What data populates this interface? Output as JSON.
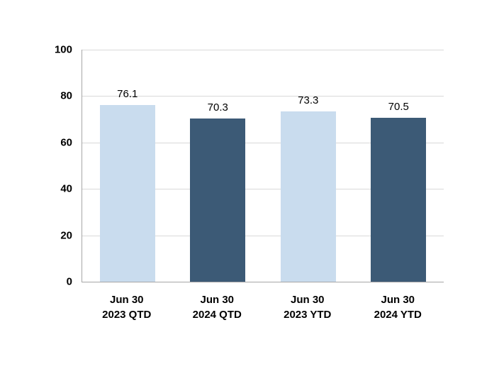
{
  "chart_data": {
    "type": "bar",
    "title": "",
    "xlabel": "",
    "ylabel": "",
    "categories": [
      "Jun 30\n2023 QTD",
      "Jun 30\n2024 QTD",
      "Jun 30\n2023 YTD",
      "Jun 30\n2024 YTD"
    ],
    "values": [
      76.1,
      70.3,
      73.3,
      70.5
    ],
    "data_labels": [
      "76.1",
      "70.3",
      "73.3",
      "70.5"
    ],
    "bar_colors": [
      "#c9dcee",
      "#3c5a76",
      "#c9dcee",
      "#3c5a76"
    ],
    "ylim": [
      0,
      100
    ],
    "yticks": [
      0,
      20,
      40,
      60,
      80,
      100
    ],
    "grid": true,
    "legend_position": "none",
    "colors": {
      "light_blue": "#c9dcee",
      "dark_blue": "#3c5a76",
      "gridline": "#d9d9d9",
      "axis_line": "#a6a6a6",
      "text": "#000000",
      "background": "#ffffff"
    }
  }
}
